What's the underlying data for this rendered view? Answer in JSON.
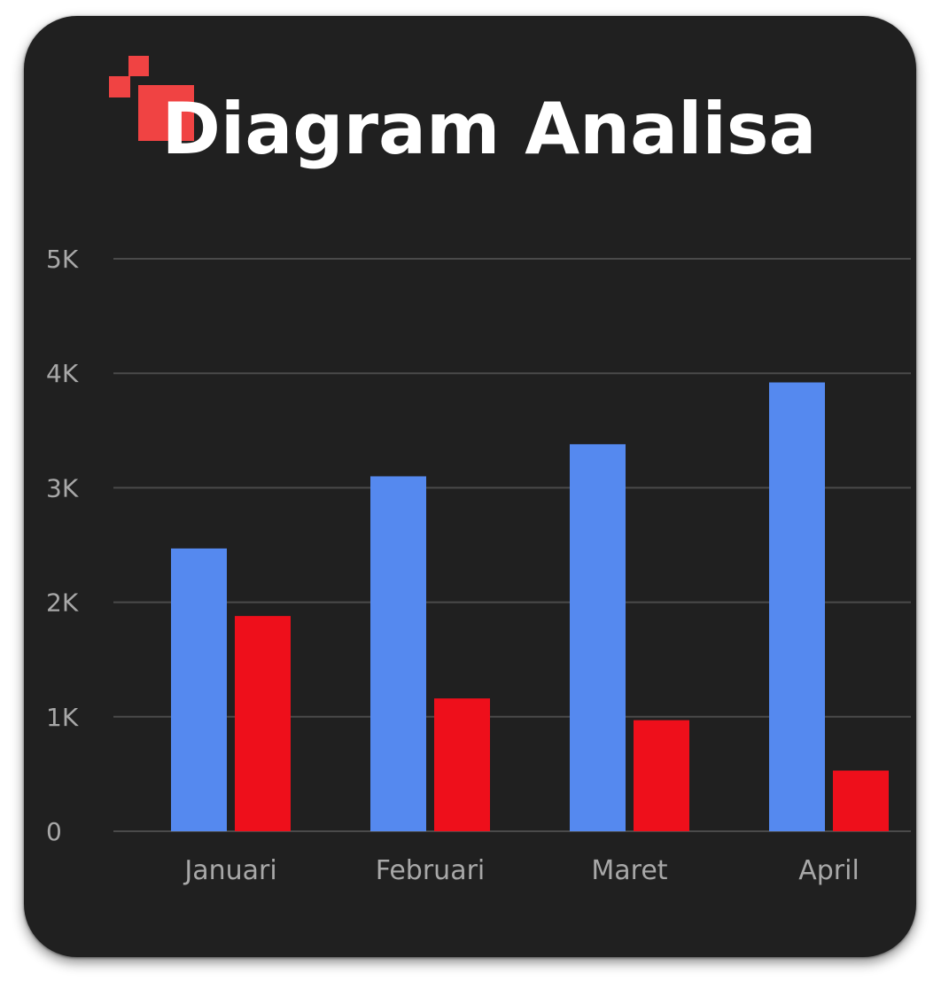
{
  "colors": {
    "background": "#202020",
    "series_blue": "#5589ef",
    "series_red": "#ee0f1b",
    "gridline": "#4a4a4a",
    "axis_text": "#a8a8a8",
    "logo_accent": "#f04343"
  },
  "header": {
    "title": "Diagram Analisa",
    "logo_icon": "pixel-squares-icon"
  },
  "chart_data": {
    "type": "bar",
    "title": "Diagram Analisa",
    "xlabel": "",
    "ylabel": "",
    "categories": [
      "Januari",
      "Februari",
      "Maret",
      "April"
    ],
    "series": [
      {
        "color": "#5589ef",
        "values": [
          2470,
          3100,
          3380,
          3920
        ]
      },
      {
        "color": "#ee0f1b",
        "values": [
          1880,
          1160,
          970,
          530
        ]
      }
    ],
    "ylim": [
      0,
      5000
    ],
    "yticks": [
      {
        "value": 0,
        "label": "0"
      },
      {
        "value": 1000,
        "label": "1K"
      },
      {
        "value": 2000,
        "label": "2K"
      },
      {
        "value": 3000,
        "label": "3K"
      },
      {
        "value": 4000,
        "label": "4K"
      },
      {
        "value": 5000,
        "label": "5K"
      }
    ],
    "grid": true,
    "legend": "none"
  }
}
